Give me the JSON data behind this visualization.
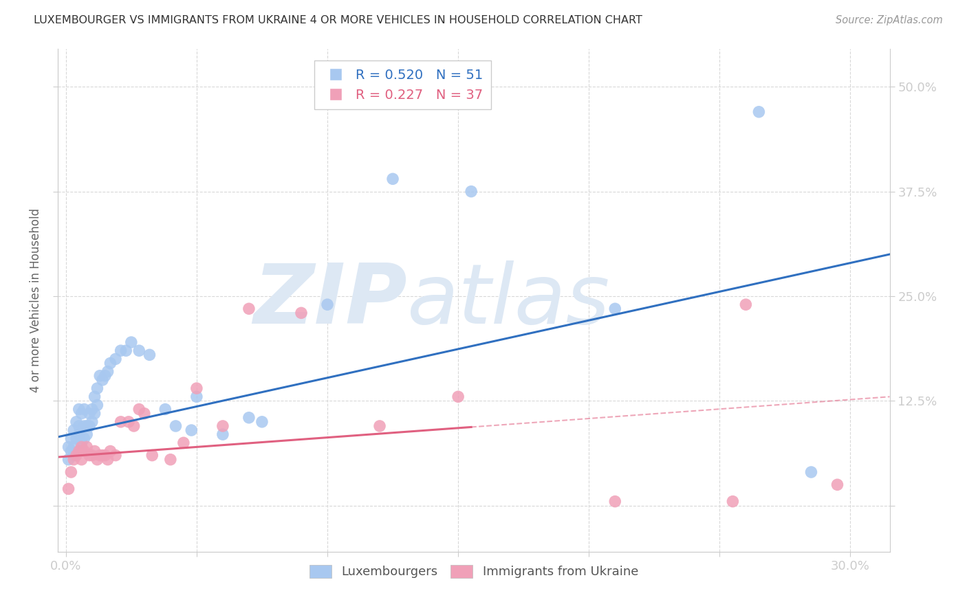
{
  "title": "LUXEMBOURGER VS IMMIGRANTS FROM UKRAINE 4 OR MORE VEHICLES IN HOUSEHOLD CORRELATION CHART",
  "source": "Source: ZipAtlas.com",
  "ylabel": "4 or more Vehicles in Household",
  "x_ticks": [
    0.0,
    0.05,
    0.1,
    0.15,
    0.2,
    0.25,
    0.3
  ],
  "y_ticks": [
    0.0,
    0.125,
    0.25,
    0.375,
    0.5
  ],
  "y_tick_labels": [
    "",
    "12.5%",
    "25.0%",
    "37.5%",
    "50.0%"
  ],
  "xlim": [
    -0.003,
    0.315
  ],
  "ylim": [
    -0.055,
    0.545
  ],
  "blue_R": 0.52,
  "blue_N": 51,
  "pink_R": 0.227,
  "pink_N": 37,
  "blue_label": "Luxembourgers",
  "pink_label": "Immigrants from Ukraine",
  "background_color": "#ffffff",
  "grid_color": "#d8d8d8",
  "watermark_zip": "ZIP",
  "watermark_atlas": "atlas",
  "blue_color": "#a8c8f0",
  "pink_color": "#f0a0b8",
  "blue_line_color": "#3070c0",
  "pink_line_color": "#e06080",
  "title_color": "#333333",
  "tick_color_blue": "#4488cc",
  "blue_line_start_y": 0.082,
  "blue_line_end_y": 0.3,
  "pink_line_start_y": 0.058,
  "pink_line_end_y": 0.13,
  "pink_line_solid_end_x": 0.155,
  "blue_scatter_x": [
    0.001,
    0.001,
    0.002,
    0.002,
    0.003,
    0.003,
    0.003,
    0.004,
    0.004,
    0.005,
    0.005,
    0.005,
    0.006,
    0.006,
    0.007,
    0.007,
    0.007,
    0.008,
    0.008,
    0.009,
    0.009,
    0.01,
    0.01,
    0.011,
    0.011,
    0.012,
    0.012,
    0.013,
    0.014,
    0.015,
    0.016,
    0.017,
    0.019,
    0.021,
    0.023,
    0.025,
    0.028,
    0.032,
    0.038,
    0.042,
    0.048,
    0.06,
    0.075,
    0.1,
    0.125,
    0.155,
    0.21,
    0.265,
    0.285,
    0.05,
    0.07
  ],
  "blue_scatter_y": [
    0.055,
    0.07,
    0.065,
    0.08,
    0.06,
    0.07,
    0.09,
    0.08,
    0.1,
    0.085,
    0.095,
    0.115,
    0.075,
    0.11,
    0.08,
    0.095,
    0.115,
    0.085,
    0.095,
    0.095,
    0.11,
    0.1,
    0.115,
    0.11,
    0.13,
    0.12,
    0.14,
    0.155,
    0.15,
    0.155,
    0.16,
    0.17,
    0.175,
    0.185,
    0.185,
    0.195,
    0.185,
    0.18,
    0.115,
    0.095,
    0.09,
    0.085,
    0.1,
    0.24,
    0.39,
    0.375,
    0.235,
    0.47,
    0.04,
    0.13,
    0.105
  ],
  "pink_scatter_x": [
    0.001,
    0.002,
    0.003,
    0.004,
    0.005,
    0.006,
    0.006,
    0.007,
    0.008,
    0.009,
    0.01,
    0.011,
    0.012,
    0.013,
    0.014,
    0.015,
    0.016,
    0.017,
    0.019,
    0.021,
    0.024,
    0.026,
    0.028,
    0.03,
    0.033,
    0.04,
    0.045,
    0.05,
    0.06,
    0.07,
    0.09,
    0.12,
    0.15,
    0.21,
    0.255,
    0.26,
    0.295
  ],
  "pink_scatter_y": [
    0.02,
    0.04,
    0.055,
    0.06,
    0.065,
    0.055,
    0.07,
    0.065,
    0.07,
    0.06,
    0.06,
    0.065,
    0.055,
    0.06,
    0.06,
    0.06,
    0.055,
    0.065,
    0.06,
    0.1,
    0.1,
    0.095,
    0.115,
    0.11,
    0.06,
    0.055,
    0.075,
    0.14,
    0.095,
    0.235,
    0.23,
    0.095,
    0.13,
    0.005,
    0.005,
    0.24,
    0.025
  ]
}
